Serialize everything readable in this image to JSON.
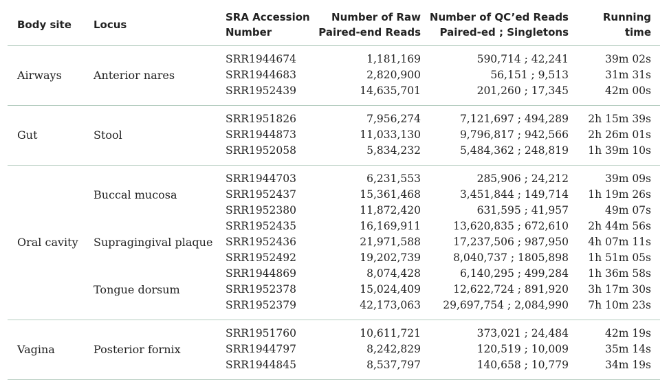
{
  "headers": {
    "body_site": "Body site",
    "locus": "Locus",
    "sra_line1": "SRA Accession",
    "sra_line2": "Number",
    "raw_line1": "Number of Raw",
    "raw_line2": "Paired-end Reads",
    "qc_line1": "Number of QC’ed Reads",
    "qc_line2": "Paired-ed ; Singletons",
    "time_line1": "Running",
    "time_line2": "time"
  },
  "groups": [
    {
      "body_site": "Airways",
      "loci": [
        "Anterior nares"
      ],
      "rows": [
        {
          "sra": "SRR1944674",
          "raw": "1,181,169",
          "qc": "590,714 ; 42,241",
          "time": "39m 02s"
        },
        {
          "sra": "SRR1944683",
          "raw": "2,820,900",
          "qc": "56,151 ; 9,513",
          "time": "31m 31s"
        },
        {
          "sra": "SRR1952439",
          "raw": "14,635,701",
          "qc": "201,260 ; 17,345",
          "time": "42m 00s"
        }
      ]
    },
    {
      "body_site": "Gut",
      "loci": [
        "Stool"
      ],
      "rows": [
        {
          "sra": "SRR1951826",
          "raw": "7,956,274",
          "qc": "7,121,697 ; 494,289",
          "time": "2h 15m 39s"
        },
        {
          "sra": "SRR1944873",
          "raw": "11,033,130",
          "qc": "9,796,817 ; 942,566",
          "time": "2h 26m 01s"
        },
        {
          "sra": "SRR1952058",
          "raw": "5,834,232",
          "qc": "5,484,362 ; 248,819",
          "time": "1h 39m 10s"
        }
      ]
    },
    {
      "body_site": "Oral cavity",
      "loci": [
        "Buccal mucosa",
        "Supragingival plaque",
        "Tongue dorsum"
      ],
      "rows": [
        {
          "sra": "SRR1944703",
          "raw": "6,231,553",
          "qc": "285,906 ; 24,212",
          "time": "39m 09s"
        },
        {
          "sra": "SRR1952437",
          "raw": "15,361,468",
          "qc": "3,451,844 ; 149,714",
          "time": "1h 19m 26s"
        },
        {
          "sra": "SRR1952380",
          "raw": "11,872,420",
          "qc": "631,595 ; 41,957",
          "time": "49m 07s"
        },
        {
          "sra": "SRR1952435",
          "raw": "16,169,911",
          "qc": "13,620,835 ; 672,610",
          "time": "2h 44m 56s"
        },
        {
          "sra": "SRR1952436",
          "raw": "21,971,588",
          "qc": "17,237,506 ; 987,950",
          "time": "4h 07m 11s"
        },
        {
          "sra": "SRR1952492",
          "raw": "19,202,739",
          "qc": "8,040,737 ; 1805,898",
          "time": "1h 51m 05s"
        },
        {
          "sra": "SRR1944869",
          "raw": "8,074,428",
          "qc": "6,140,295 ; 499,284",
          "time": "1h 36m 58s"
        },
        {
          "sra": "SRR1952378",
          "raw": "15,024,409",
          "qc": "12,622,724 ; 891,920",
          "time": "3h 17m 30s"
        },
        {
          "sra": "SRR1952379",
          "raw": "42,173,063",
          "qc": "29,697,754 ; 2,084,990",
          "time": "7h 10m 23s"
        }
      ]
    },
    {
      "body_site": "Vagina",
      "loci": [
        "Posterior fornix"
      ],
      "rows": [
        {
          "sra": "SRR1951760",
          "raw": "10,611,721",
          "qc": "373,021 ; 24,484",
          "time": "42m 19s"
        },
        {
          "sra": "SRR1944797",
          "raw": "8,242,829",
          "qc": "120,519 ; 10,009",
          "time": "35m 14s"
        },
        {
          "sra": "SRR1944845",
          "raw": "8,537,797",
          "qc": "140,658 ; 10,779",
          "time": "34m 19s"
        }
      ]
    }
  ]
}
